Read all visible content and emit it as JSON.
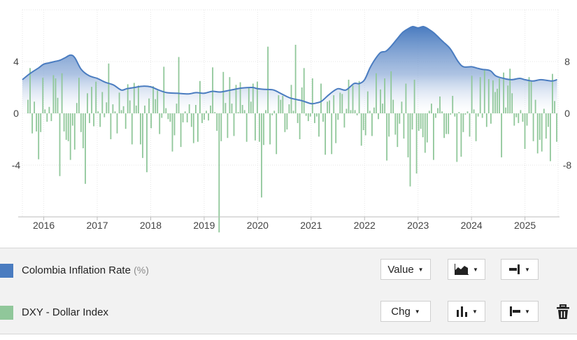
{
  "chart_data": {
    "type": "line",
    "x_ticks": [
      "2016",
      "2017",
      "2018",
      "2019",
      "2020",
      "2021",
      "2022",
      "2023",
      "2024",
      "2025"
    ],
    "left_axis": {
      "ticks": [
        "-4",
        "0",
        "4"
      ],
      "ylim": [
        -8,
        8
      ]
    },
    "right_axis": {
      "ticks": [
        "-8",
        "0",
        "8"
      ],
      "ylim": [
        -16,
        16
      ]
    },
    "grid": true,
    "series": [
      {
        "name": "Colombia Inflation Rate (%)",
        "axis": "left",
        "render": "area",
        "color": "#4a7cc0",
        "x": [
          2015.6,
          2015.75,
          2015.9,
          2016.0,
          2016.1,
          2016.2,
          2016.3,
          2016.4,
          2016.5,
          2016.58,
          2016.7,
          2016.85,
          2017.0,
          2017.15,
          2017.3,
          2017.45,
          2017.55,
          2017.7,
          2017.85,
          2018.0,
          2018.15,
          2018.3,
          2018.5,
          2018.7,
          2018.85,
          2019.0,
          2019.15,
          2019.3,
          2019.5,
          2019.7,
          2019.9,
          2020.0,
          2020.15,
          2020.3,
          2020.45,
          2020.6,
          2020.75,
          2020.85,
          2021.0,
          2021.1,
          2021.2,
          2021.35,
          2021.5,
          2021.65,
          2021.8,
          2021.9,
          2022.0,
          2022.1,
          2022.2,
          2022.3,
          2022.4,
          2022.5,
          2022.6,
          2022.7,
          2022.8,
          2022.9,
          2023.0,
          2023.1,
          2023.2,
          2023.3,
          2023.45,
          2023.6,
          2023.75,
          2023.85,
          2024.0,
          2024.1,
          2024.2,
          2024.35,
          2024.45,
          2024.6,
          2024.75,
          2024.9,
          2025.0,
          2025.15,
          2025.3,
          2025.5,
          2025.6
        ],
        "values": [
          2.6,
          3.1,
          3.5,
          3.8,
          3.9,
          4.0,
          4.1,
          4.3,
          4.5,
          4.3,
          3.4,
          2.9,
          2.7,
          2.4,
          2.2,
          1.8,
          1.9,
          2.0,
          2.1,
          2.05,
          1.8,
          1.6,
          1.55,
          1.5,
          1.6,
          1.55,
          1.7,
          1.65,
          1.8,
          1.95,
          2.0,
          1.9,
          1.85,
          1.8,
          1.5,
          1.2,
          1.05,
          0.95,
          0.75,
          0.8,
          0.95,
          1.5,
          1.9,
          1.8,
          2.3,
          2.3,
          2.6,
          3.5,
          4.2,
          4.7,
          4.8,
          5.2,
          5.7,
          6.2,
          6.5,
          6.7,
          6.6,
          6.7,
          6.5,
          6.2,
          5.6,
          5.0,
          4.0,
          3.6,
          3.6,
          3.5,
          3.4,
          3.3,
          2.9,
          2.7,
          2.6,
          2.7,
          2.6,
          2.5,
          2.6,
          2.5,
          2.6
        ]
      },
      {
        "name": "DXY - Dollar Index",
        "axis": "right",
        "render": "bar",
        "color": "#90c79a",
        "values": [
          2.1,
          7.0,
          -3.1,
          1.8,
          -2.8,
          -7.1,
          -2.9,
          5.5,
          0.6,
          -1.3,
          1.0,
          -1.2,
          5.9,
          5.4,
          2.4,
          -9.7,
          6.2,
          -2.8,
          -4.1,
          -4.3,
          -7.2,
          -1.9,
          -5.6,
          1.6,
          5.5,
          -2.9,
          -5.4,
          -10.9,
          3.1,
          -1.5,
          4.1,
          -2.0,
          4.9,
          0.3,
          -2.1,
          3.3,
          -0.6,
          1.7,
          7.7,
          -4.0,
          1.4,
          0.3,
          -3.1,
          3.2,
          0.5,
          1.1,
          -2.4,
          4.5,
          2.0,
          -4.8,
          4.7,
          1.2,
          4.3,
          -4.8,
          -6.9,
          1.2,
          -9.1,
          2.3,
          -2.3,
          4.2,
          2.2,
          3.5,
          -3.2,
          -0.7,
          7.2,
          0.8,
          -0.9,
          -1.3,
          -5.9,
          -3.4,
          1.5,
          8.7,
          -5.2,
          -1.4,
          0.3,
          -1.4,
          1.4,
          -2.1,
          -4.6,
          1.3,
          -4.4,
          5.0,
          -1.5,
          -1.0,
          0.4,
          -1.1,
          1.2,
          7.1,
          0.2,
          -2.7,
          -18.4,
          -4.3,
          6.4,
          1.6,
          -3.8,
          5.6,
          1.5,
          -3.5,
          4.4,
          0.2,
          4.8,
          1.3,
          0.5,
          -4.4,
          3.9,
          1.8,
          4.6,
          -4.2,
          4.9,
          -4.4,
          -13.0,
          -4.9,
          0.5,
          10.3,
          -4.8,
          -0.3,
          0.4,
          -6.3,
          2.8,
          2.1,
          2.7,
          -2.9,
          -2.5,
          1.4,
          4.4,
          0.4,
          10.6,
          -1.5,
          -4.0,
          4.0,
          7.0,
          -0.4,
          -1.2,
          -0.5,
          5.4,
          -1.5,
          -0.5,
          -3.6,
          4.6,
          -1.3,
          -6.4,
          1.8,
          2.0,
          -6.3,
          2.8,
          -4.6,
          -1.0,
          3.2,
          3.0,
          -2.2,
          0.7,
          5.2,
          0.5,
          4.3,
          0.5,
          -0.3,
          5.0,
          -5.0,
          -2.6,
          -3.4,
          3.4,
          0.4,
          -3.5,
          0.9,
          6.2,
          -0.9,
          3.7,
          1.5,
          5.4,
          -7.3,
          -3.6,
          6.5,
          2.1,
          -3.3,
          -5.2,
          -1.6,
          1.8,
          -3.9,
          4.6,
          -6.8,
          -11.3,
          -2.5,
          5.2,
          -9.3,
          -2.7,
          -2.4,
          -3.7,
          -6.1,
          -4.5,
          0.4,
          1.5,
          -7.2,
          -0.7,
          0.8,
          2.6,
          0.3,
          -3.8,
          -3.2,
          -3.2,
          -0.2,
          2.7,
          -0.5,
          -7.5,
          0.2,
          -6.7,
          -2.9,
          -0.2,
          0.3,
          -3.6,
          5.8,
          0.6,
          -4.3,
          -0.5,
          5.6,
          -0.7,
          6.7,
          -2.1,
          5.3,
          -1.6,
          5.1,
          3.3,
          3.8,
          5.4,
          -6.8,
          6.3,
          0.9,
          4.3,
          6.9,
          3.1,
          -1.9,
          -0.6,
          -1.5,
          0.5,
          -1.3,
          -5.5,
          -1.9,
          5.6,
          4.9,
          -4.3,
          2.1,
          -6.2,
          -4.1,
          -5.9,
          0.7,
          -3.9,
          -2.1,
          -7.4,
          6.1,
          1.9,
          -4.4
        ]
      }
    ]
  },
  "legend": [
    {
      "label": "Colombia Inflation Rate",
      "unit": "(%)",
      "color": "#4a7cc0",
      "mode": "Value",
      "chart_icon": "area-chart-icon",
      "axis_icon": "right-axis-icon"
    },
    {
      "label": "DXY - Dollar Index",
      "unit": "",
      "color": "#90c79a",
      "mode": "Chg",
      "chart_icon": "bar-chart-icon",
      "axis_icon": "left-axis-icon",
      "delete_icon": "trash-icon"
    }
  ]
}
